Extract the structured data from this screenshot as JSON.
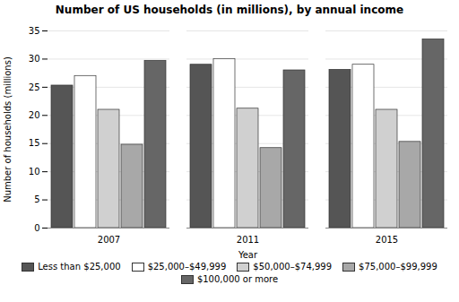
{
  "chart_data": {
    "type": "bar",
    "title": "Number of US households (in millions), by annual income",
    "xlabel": "Year",
    "ylabel": "Number of households (millions)",
    "categories": [
      "2007",
      "2011",
      "2015"
    ],
    "series": [
      {
        "name": "Less than $25,000",
        "color": "#555555",
        "values": [
          25.3,
          29.0,
          28.1
        ]
      },
      {
        "name": "$25,000–$49,999",
        "color": "#ffffff",
        "values": [
          27.0,
          30.0,
          29.0
        ]
      },
      {
        "name": "$50,000–$74,999",
        "color": "#d0d0d0",
        "values": [
          21.0,
          21.2,
          21.0
        ]
      },
      {
        "name": "$75,000–$99,999",
        "color": "#a8a8a8",
        "values": [
          14.8,
          14.2,
          15.3
        ]
      },
      {
        "name": "$100,000 or more",
        "color": "#666666",
        "values": [
          29.7,
          28.0,
          33.5
        ]
      }
    ],
    "ylim": [
      0,
      35
    ],
    "yticks": [
      0,
      5,
      10,
      15,
      20,
      25,
      30,
      35
    ],
    "grid": true,
    "legend": "bottom"
  }
}
